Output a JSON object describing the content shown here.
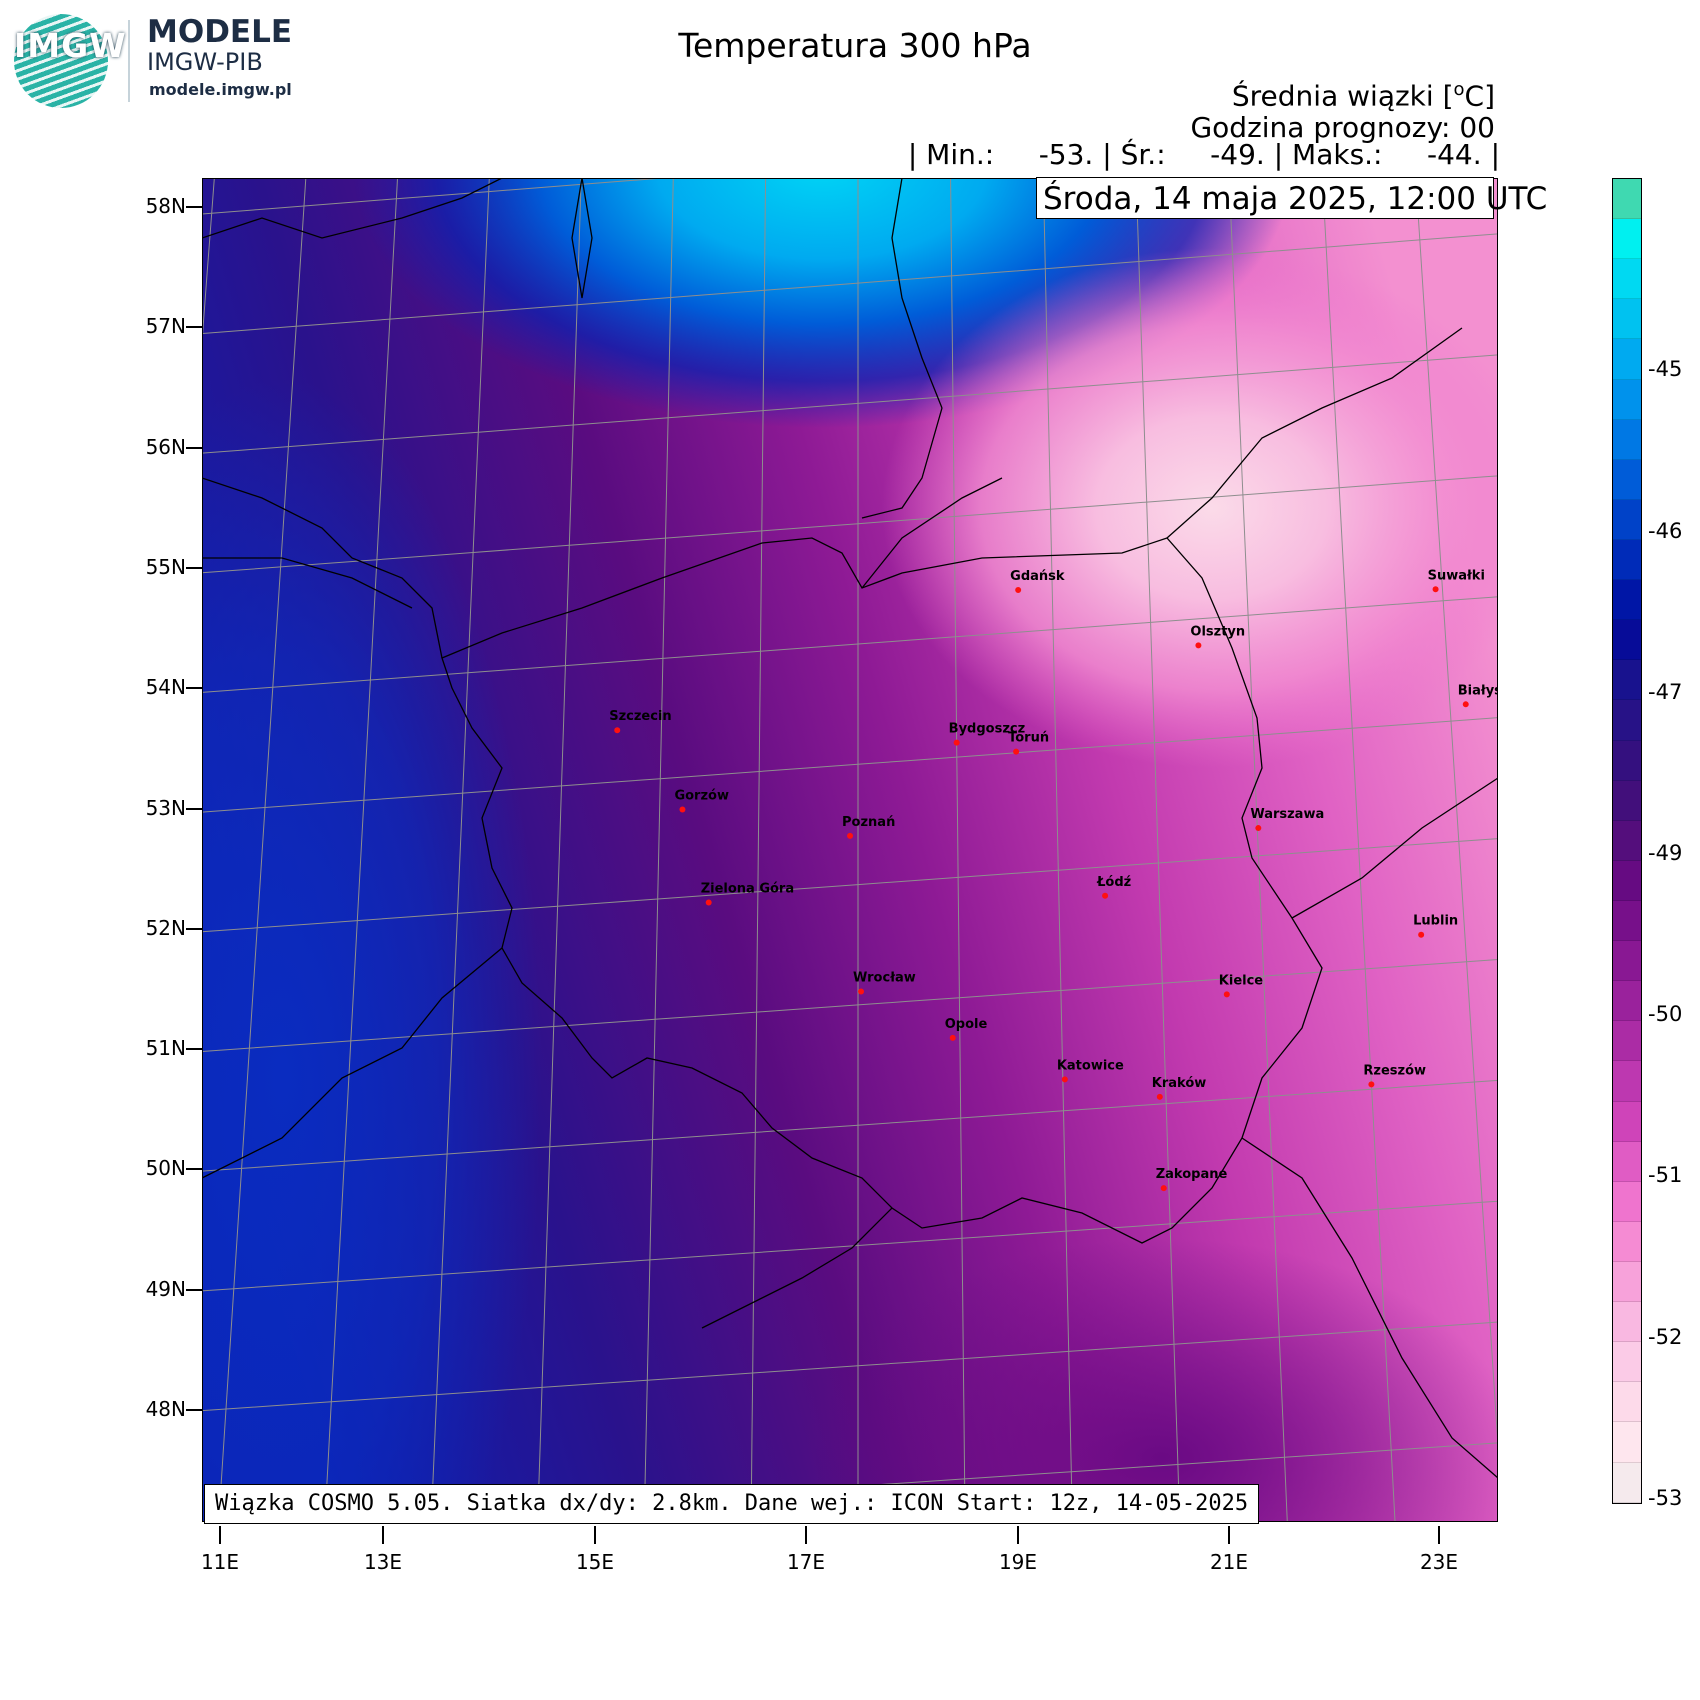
{
  "branding": {
    "logo_text": "IMGW",
    "title": "MODELE",
    "org": "IMGW-PIB",
    "url": "modele.imgw.pl"
  },
  "map": {
    "title": "Temperatura 300 hPa",
    "subtitle_line1": "Średnia wiązki [",
    "unit_sup": "o",
    "subtitle_unit": "C]",
    "forecast_hour": "Godzina prognozy: 00",
    "stats": {
      "min_label": "| Min.:",
      "min_value": "-53.",
      "avg_label": "| Śr.:",
      "avg_value": "-49.",
      "max_label": "| Maks.:",
      "max_value": "-44.",
      "end": "|"
    },
    "date": "Środa, 14 maja 2025, 12:00 UTC",
    "footer": "Wiązka COSMO 5.05. Siatka dx/dy: 2.8km. Dane wej.: ICON Start: 12z, 14-05-2025",
    "lat_labels": [
      "58N",
      "57N",
      "56N",
      "55N",
      "54N",
      "53N",
      "52N",
      "51N",
      "50N",
      "49N",
      "48N"
    ],
    "lon_labels": [
      "11E",
      "13E",
      "15E",
      "17E",
      "19E",
      "21E",
      "23E"
    ],
    "cities": [
      {
        "name": "Gdańsk",
        "lon": 18.65,
        "lat": 54.35
      },
      {
        "name": "Suwałki",
        "lon": 22.93,
        "lat": 54.1
      },
      {
        "name": "Olsztyn",
        "lon": 20.48,
        "lat": 53.78
      },
      {
        "name": "Białystok",
        "lon": 23.16,
        "lat": 53.13
      },
      {
        "name": "Szczecin",
        "lon": 14.55,
        "lat": 53.43
      },
      {
        "name": "Bydgoszcz",
        "lon": 18.0,
        "lat": 53.12
      },
      {
        "name": "Toruń",
        "lon": 18.6,
        "lat": 53.01
      },
      {
        "name": "Gorzów",
        "lon": 15.23,
        "lat": 52.73
      },
      {
        "name": "Poznań",
        "lon": 16.92,
        "lat": 52.41
      },
      {
        "name": "Warszawa",
        "lon": 21.01,
        "lat": 52.23
      },
      {
        "name": "Łódź",
        "lon": 19.46,
        "lat": 51.76
      },
      {
        "name": "Zielona Góra",
        "lon": 15.51,
        "lat": 51.94
      },
      {
        "name": "Lublin",
        "lon": 22.57,
        "lat": 51.25
      },
      {
        "name": "Wrocław",
        "lon": 17.03,
        "lat": 51.11
      },
      {
        "name": "Kielce",
        "lon": 20.63,
        "lat": 50.87
      },
      {
        "name": "Opole",
        "lon": 17.93,
        "lat": 50.67
      },
      {
        "name": "Rzeszów",
        "lon": 22.0,
        "lat": 50.04
      },
      {
        "name": "Katowice",
        "lon": 19.02,
        "lat": 50.26
      },
      {
        "name": "Kraków",
        "lon": 19.94,
        "lat": 50.06
      },
      {
        "name": "Zakopane",
        "lon": 19.95,
        "lat": 49.3
      }
    ]
  },
  "legend": {
    "labels": [
      "-45",
      "-46",
      "-47",
      "-49",
      "-50",
      "-51",
      "-52",
      "-53"
    ],
    "colors": [
      "#3fd9b1",
      "#00f0f0",
      "#00d9f2",
      "#00c2f0",
      "#00aaf0",
      "#0092ec",
      "#0078e4",
      "#005cd8",
      "#0042c8",
      "#002bb8",
      "#0016a6",
      "#070c98",
      "#18128e",
      "#271287",
      "#34107f",
      "#420f7b",
      "#540e7c",
      "#660b82",
      "#77108a",
      "#891893",
      "#9a229c",
      "#ab2ca5",
      "#bd38b0",
      "#cf44b9",
      "#e05cc4",
      "#ef74ce",
      "#f58bd3",
      "#f7a2da",
      "#f9b8e1",
      "#fbcbe7",
      "#fddaea",
      "#fee6ee",
      "#f5eaed"
    ]
  }
}
